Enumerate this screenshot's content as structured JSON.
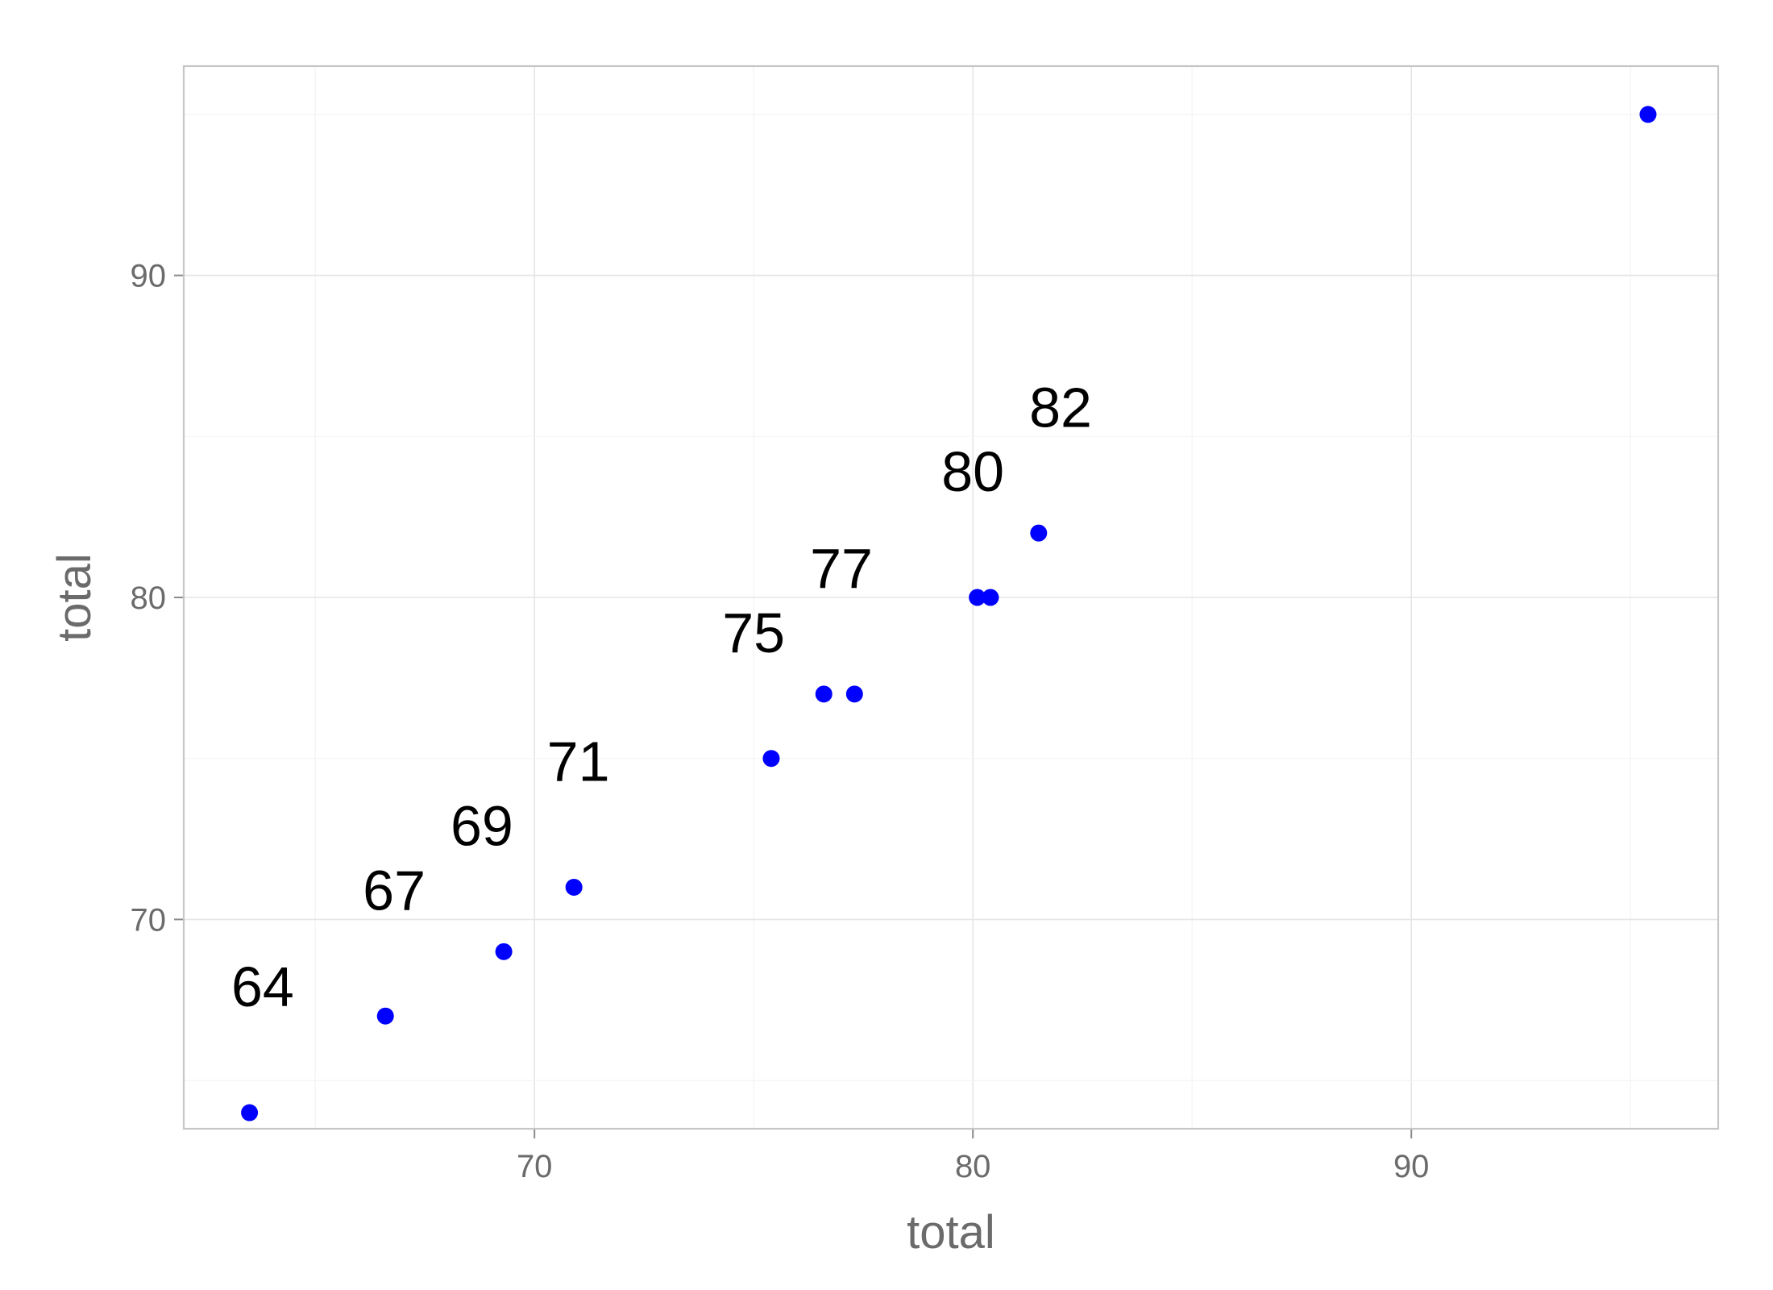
{
  "chart_data": {
    "type": "scatter",
    "title": "",
    "xlabel": "total",
    "ylabel": "total",
    "xlim": [
      62,
      97
    ],
    "ylim": [
      63.5,
      96.5
    ],
    "x_ticks": [
      70,
      80,
      90
    ],
    "y_ticks": [
      70,
      80,
      90
    ],
    "grid": true,
    "point_color": "#0000ff",
    "label_color": "#000000",
    "points": [
      {
        "x": 63.5,
        "y": 64
      },
      {
        "x": 66.6,
        "y": 67
      },
      {
        "x": 69.3,
        "y": 69
      },
      {
        "x": 70.9,
        "y": 71
      },
      {
        "x": 75.4,
        "y": 75
      },
      {
        "x": 76.6,
        "y": 77
      },
      {
        "x": 77.3,
        "y": 77
      },
      {
        "x": 80.1,
        "y": 80
      },
      {
        "x": 80.4,
        "y": 80
      },
      {
        "x": 81.5,
        "y": 82
      },
      {
        "x": 95.4,
        "y": 95
      }
    ],
    "labels": [
      {
        "x": 63.8,
        "y": 67.3,
        "text": "64"
      },
      {
        "x": 66.8,
        "y": 70.3,
        "text": "67"
      },
      {
        "x": 68.8,
        "y": 72.3,
        "text": "69"
      },
      {
        "x": 71.0,
        "y": 74.3,
        "text": "71"
      },
      {
        "x": 75.0,
        "y": 78.3,
        "text": "75"
      },
      {
        "x": 77.0,
        "y": 80.3,
        "text": "77"
      },
      {
        "x": 80.0,
        "y": 83.3,
        "text": "80"
      },
      {
        "x": 82.0,
        "y": 85.3,
        "text": "82"
      }
    ]
  }
}
